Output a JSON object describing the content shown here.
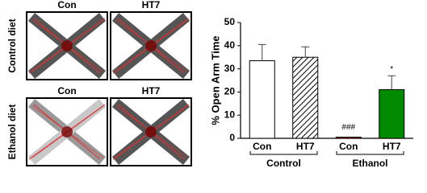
{
  "panels": [
    {
      "row": "Control diet",
      "titles": [
        "Con",
        "HT7"
      ]
    },
    {
      "row": "Ethanol diet",
      "titles": [
        "Con",
        "HT7"
      ]
    }
  ],
  "chart_data": {
    "type": "bar",
    "y_label": "% Open Arm Time",
    "categories": [
      "Con",
      "HT7",
      "Con",
      "HT7"
    ],
    "group_labels": [
      "Control",
      "Ethanol"
    ],
    "values": [
      33.5,
      35,
      0.5,
      21
    ],
    "errors": [
      7,
      4.5,
      null,
      6
    ],
    "colors": [
      "#ffffff",
      "#ffffff",
      "#e00000",
      "#008a00"
    ],
    "hatch": [
      false,
      true,
      false,
      false
    ],
    "bar_annotations": [
      null,
      null,
      "###",
      "*"
    ],
    "ylim": [
      0,
      50
    ],
    "yticks": [
      0,
      10,
      20,
      30,
      40,
      50
    ]
  }
}
